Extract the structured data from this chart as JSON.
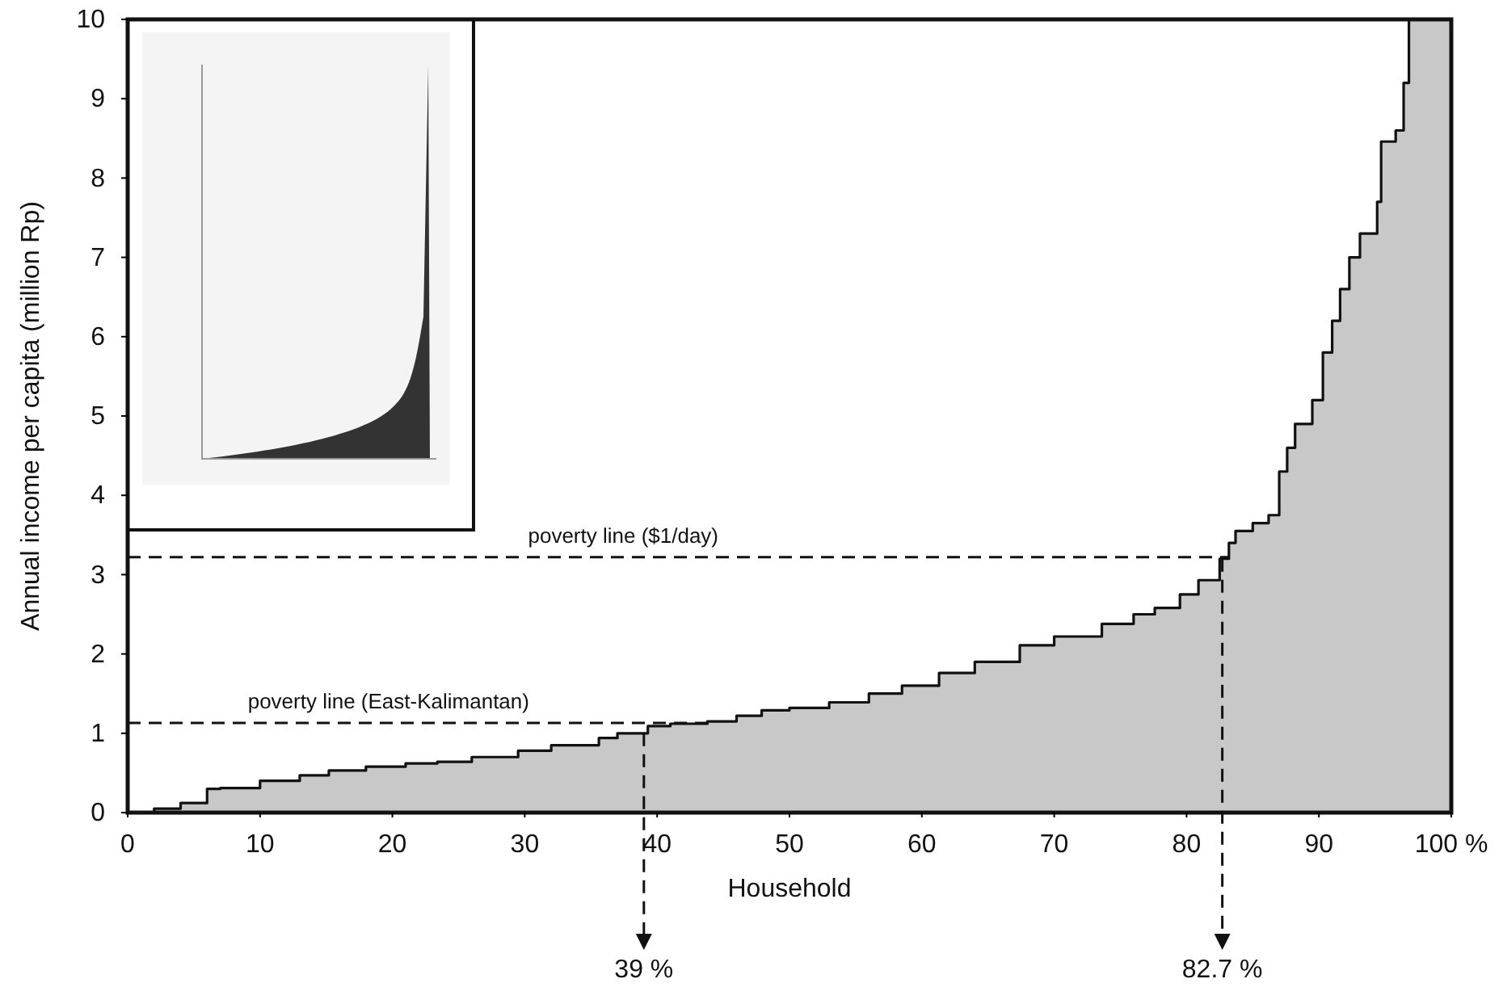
{
  "chart_data": {
    "type": "area",
    "xlabel": "Household",
    "ylabel": "Annual income per capita (million Rp)",
    "xlim": [
      0,
      100
    ],
    "ylim": [
      0,
      10
    ],
    "xticks": [
      0,
      10,
      20,
      30,
      40,
      50,
      60,
      70,
      80,
      90,
      {
        "value": 100,
        "label": "100 %"
      }
    ],
    "yticks": [
      0,
      1,
      2,
      3,
      4,
      5,
      6,
      7,
      8,
      9,
      10
    ],
    "series": [
      {
        "color": "#c8c8c8",
        "x": [
          0,
          2,
          4,
          6,
          7,
          10,
          13,
          15.2,
          18,
          21,
          23.4,
          26,
          29.5,
          32,
          35.6,
          37,
          39.3,
          41,
          43.8,
          46,
          47.9,
          50,
          53,
          56,
          58.5,
          61.3,
          64,
          67.4,
          70,
          73.6,
          76,
          77.6,
          79.5,
          80.9,
          82.5,
          83.2,
          83.7,
          85,
          86.2,
          87,
          87.6,
          88.2,
          89.5,
          90.3,
          91,
          91.6,
          92.3,
          93.1,
          94.4,
          94.7,
          95.8,
          96.4,
          96.8,
          100
        ],
        "values": [
          0,
          0.05,
          0.12,
          0.3,
          0.31,
          0.4,
          0.47,
          0.53,
          0.58,
          0.62,
          0.64,
          0.7,
          0.78,
          0.85,
          0.94,
          1.0,
          1.09,
          1.12,
          1.15,
          1.22,
          1.29,
          1.32,
          1.39,
          1.5,
          1.6,
          1.76,
          1.9,
          2.11,
          2.22,
          2.38,
          2.5,
          2.58,
          2.75,
          2.93,
          3.2,
          3.4,
          3.55,
          3.65,
          3.75,
          4.3,
          4.6,
          4.9,
          5.2,
          5.8,
          6.2,
          6.6,
          7.0,
          7.3,
          7.7,
          8.46,
          8.6,
          9.2,
          10,
          10
        ]
      }
    ],
    "ref_lines": [
      {
        "axis": "y",
        "value": 3.22,
        "label": "poverty line ($1/day)",
        "line_style": "dashed"
      },
      {
        "axis": "y",
        "value": 1.13,
        "label": "poverty line (East-Kalimantan)",
        "line_style": "dashed"
      },
      {
        "axis": "x",
        "value": 39,
        "label": "39 %",
        "line_style": "dashed"
      },
      {
        "axis": "x",
        "value": 82.7,
        "label": "82.7 %",
        "line_style": "dashed"
      }
    ]
  }
}
